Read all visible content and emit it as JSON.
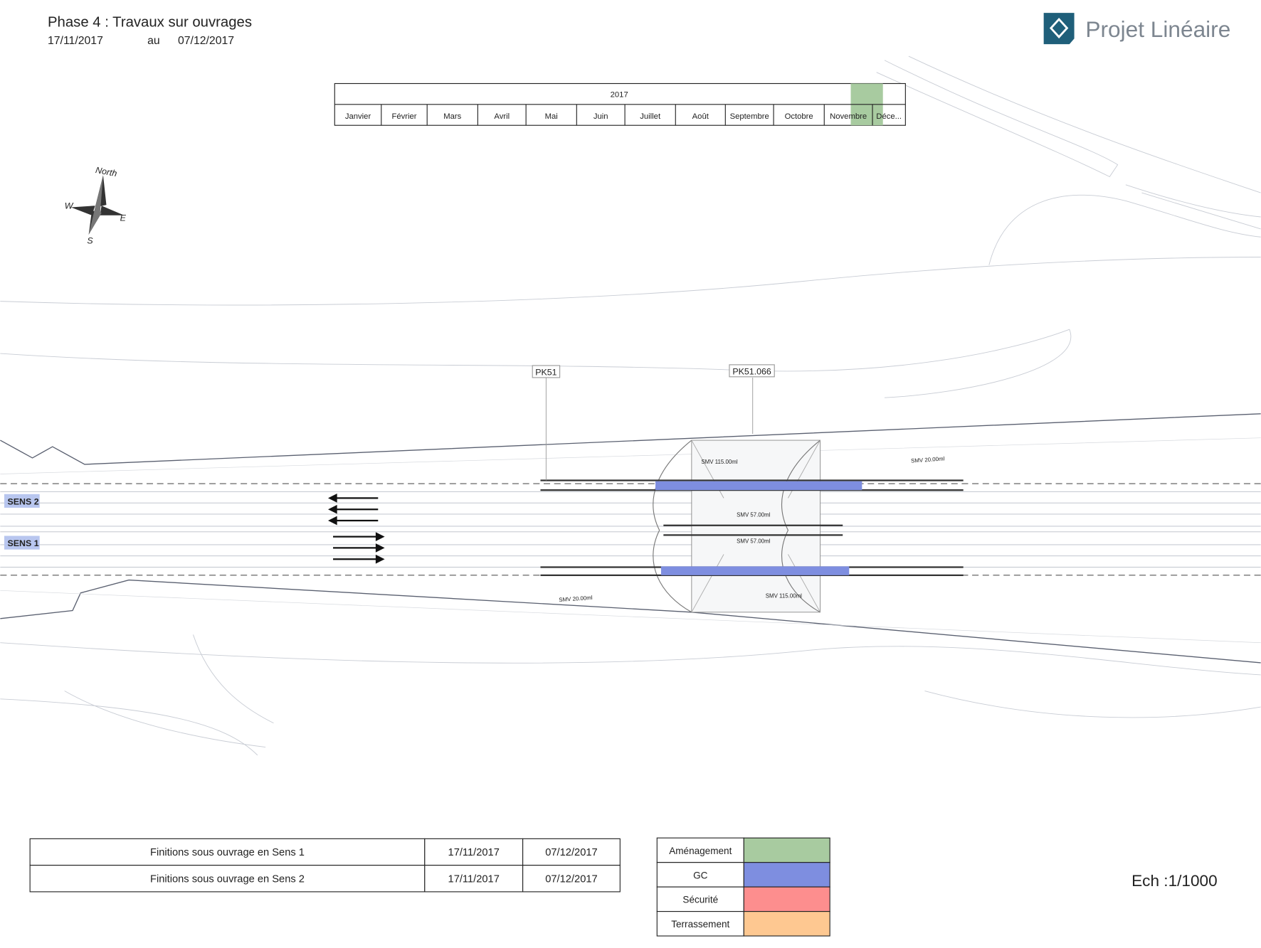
{
  "header": {
    "title": "Phase 4 : Travaux sur ouvrages",
    "start": "17/11/2017",
    "connector": "au",
    "end": "07/12/2017"
  },
  "logo": {
    "text": "Projet Linéaire"
  },
  "timeline": {
    "year": "2017",
    "months": [
      "Janvier",
      "Février",
      "Mars",
      "Avril",
      "Mai",
      "Juin",
      "Juillet",
      "Août",
      "Septembre",
      "Octobre",
      "Novembre",
      "Déce..."
    ]
  },
  "compass": {
    "north": "North",
    "west": "W",
    "east": "E",
    "south": "S"
  },
  "plan": {
    "markers": [
      "PK51",
      "PK51.066"
    ],
    "directions": [
      "SENS 2",
      "SENS 1"
    ],
    "dimensions": [
      "SMV 115.00ml",
      "SMV 20.00ml",
      "SMV 57.00ml",
      "SMV 57.00ml",
      "SMV 115.00ml",
      "SMV 20.00ml"
    ]
  },
  "tasks": {
    "rows": [
      [
        "Finitions sous ouvrage en Sens 1",
        "17/11/2017",
        "07/12/2017"
      ],
      [
        "Finitions sous ouvrage en Sens 2",
        "17/11/2017",
        "07/12/2017"
      ]
    ]
  },
  "legend": {
    "items": [
      "Aménagement",
      "GC",
      "Sécurité",
      "Terrassement"
    ]
  },
  "scale": "Ech :1/1000"
}
